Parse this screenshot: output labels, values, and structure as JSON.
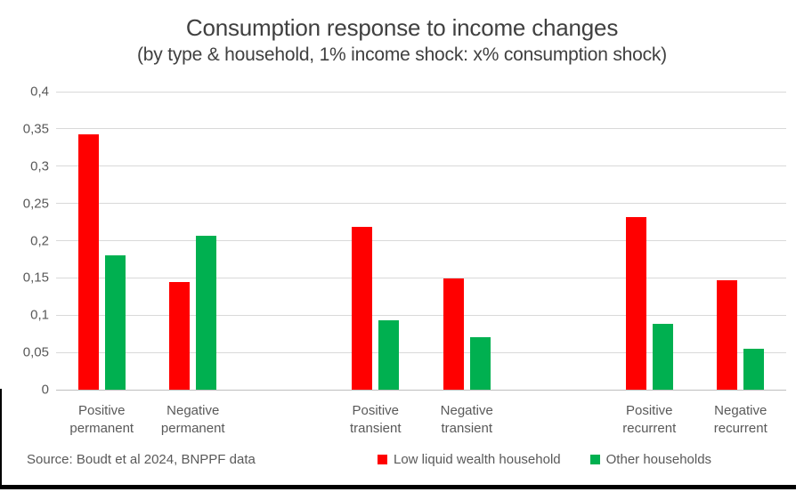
{
  "title": "Consumption response to income changes",
  "subtitle": "(by type & household, 1% income shock: x% consumption shock)",
  "source": "Source: Boudt et al 2024, BNPPF data",
  "colors": {
    "series_red": "#ff0000",
    "series_green": "#00b050",
    "gridline": "#d9d9d9",
    "text_dark": "#404040",
    "text_axis": "#595959"
  },
  "legend": [
    {
      "label": "Low liquid wealth household",
      "color": "#ff0000"
    },
    {
      "label": "Other households",
      "color": "#00b050"
    }
  ],
  "y_axis": {
    "tick_labels": [
      "0,4",
      "0,35",
      "0,3",
      "0,25",
      "0,2",
      "0,15",
      "0,1",
      "0,05",
      "0"
    ],
    "decimal_separator": ","
  },
  "chart_data": {
    "type": "bar",
    "title": "Consumption response to income changes",
    "subtitle": "(by type & household, 1% income shock: x% consumption shock)",
    "categories": [
      "Positive permanent",
      "Negative permanent",
      "Positive transient",
      "Negative transient",
      "Positive recurrent",
      "Negative recurrent"
    ],
    "series": [
      {
        "name": "Low liquid wealth household",
        "color": "#ff0000",
        "values": [
          0.343,
          0.144,
          0.219,
          0.149,
          0.232,
          0.147
        ]
      },
      {
        "name": "Other households",
        "color": "#00b050",
        "values": [
          0.18,
          0.207,
          0.093,
          0.071,
          0.089,
          0.055
        ]
      }
    ],
    "ylim": [
      0,
      0.4
    ],
    "ytick_step": 0.05,
    "grid": true,
    "legend_position": "bottom",
    "slot_layout": [
      0,
      1,
      null,
      2,
      3,
      null,
      4,
      5
    ]
  }
}
